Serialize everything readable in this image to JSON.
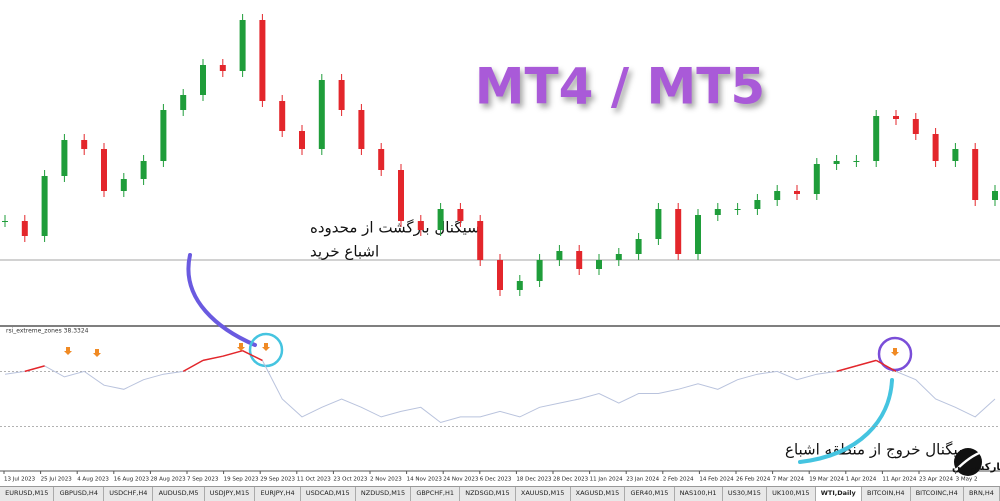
{
  "chart_data": {
    "type": "candlestick",
    "close": [
      33,
      28,
      48,
      60,
      57,
      43,
      47,
      53,
      70,
      75,
      85,
      83,
      100,
      73,
      63,
      57,
      80,
      70,
      57,
      50,
      33,
      30,
      37,
      33,
      20,
      10,
      13,
      20,
      23,
      17,
      20,
      22,
      27,
      37,
      22,
      35,
      37,
      37,
      40,
      43,
      42,
      52,
      53,
      53,
      68,
      67,
      62,
      53,
      57,
      40,
      43
    ],
    "ylim": [
      0,
      100
    ],
    "up_color": "#1f9d3a",
    "down_color": "#e3262b",
    "x_labels": [
      "13 Jul 2023",
      "25 Jul 2023",
      "4 Aug 2023",
      "16 Aug 2023",
      "28 Aug 2023",
      "7 Sep 2023",
      "19 Sep 2023",
      "29 Sep 2023",
      "11 Oct 2023",
      "23 Oct 2023",
      "2 Nov 2023",
      "14 Nov 2023",
      "24 Nov 2023",
      "6 Dec 2023",
      "18 Dec 2023",
      "28 Dec 2023",
      "11 Jan 2024",
      "23 Jan 2024",
      "2 Feb 2024",
      "14 Feb 2024",
      "26 Feb 2024",
      "7 Mar 2024",
      "19 Mar 2024",
      "1 Apr 2024",
      "11 Apr 2024",
      "23 Apr 2024",
      "3 May 2"
    ],
    "indicator": {
      "label": "rsi_extreme_zones 38.3324",
      "values": [
        68,
        70,
        74,
        66,
        70,
        60,
        57,
        64,
        68,
        70,
        78,
        81,
        85,
        78,
        50,
        37,
        44,
        50,
        44,
        37,
        41,
        44,
        33,
        37,
        37,
        41,
        37,
        44,
        47,
        50,
        54,
        47,
        54,
        54,
        57,
        61,
        57,
        64,
        68,
        70,
        64,
        68,
        70,
        74,
        78,
        70,
        64,
        50,
        44,
        37,
        50
      ],
      "ylim": [
        0,
        100
      ],
      "levels": [
        70,
        30
      ],
      "color": "#b9c3dd",
      "overbought_color": "#e3262b"
    }
  },
  "watermark": "MT4 / MT5",
  "annotations": [
    "سیگنال بازگشت از محدوده",
    "اشباع خرید",
    "سیگنال خروج از منطقه اشباع"
  ],
  "logo": "خانه فارکس من",
  "tabs": [
    "EURUSD,M15",
    "GBPUSD,H4",
    "USDCHF,H4",
    "AUDUSD,M5",
    "USDJPY,M15",
    "EURJPY,H4",
    "USDCAD,M15",
    "NZDUSD,M15",
    "GBPCHF,H1",
    "NZDSGD,M15",
    "XAUUSD,M15",
    "XAGUSD,M15",
    "GER40,M15",
    "NAS100,H1",
    "US30,M15",
    "UK100,M15",
    "WTI,Daily",
    "BITCOIN,H4",
    "BITCOINC,H4",
    "BRN,H4"
  ],
  "active_tab": "WTI,Daily"
}
